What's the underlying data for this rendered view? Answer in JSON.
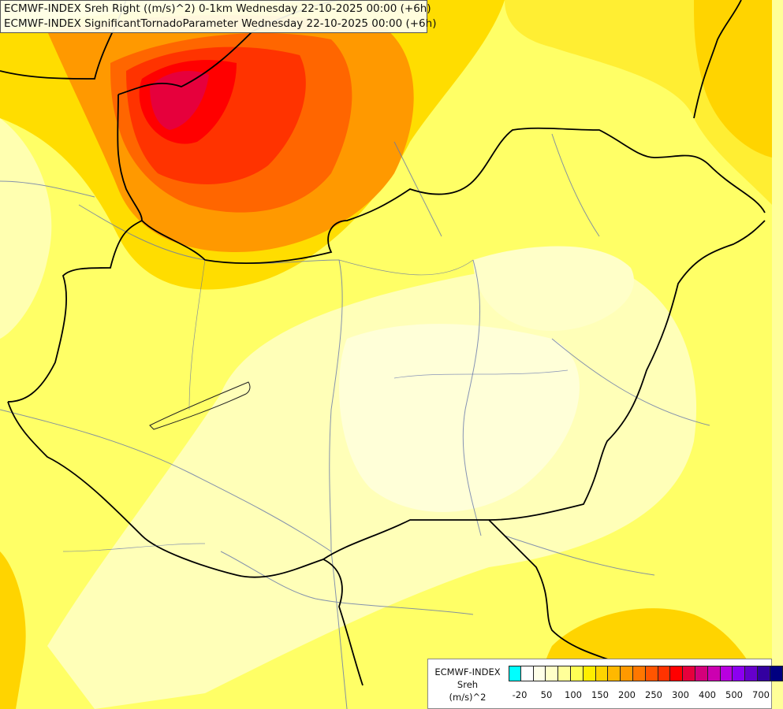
{
  "title": {
    "line1": "ECMWF-INDEX Sreh Right ((m/s)^2) 0-1km Wednesday 22-10-2025 00:00 (+6h)",
    "line2": "ECMWF-INDEX SignificantTornadoParameter Wednesday 22-10-2025 00:00 (+6h)"
  },
  "legend": {
    "source": "ECMWF-INDEX",
    "variable": "Sreh",
    "unit": "(m/s)^2",
    "colors": [
      "#00ffff",
      "#ffffff",
      "#ffffe8",
      "#ffffc8",
      "#ffff99",
      "#ffff55",
      "#ffee00",
      "#ffd400",
      "#ffb800",
      "#ff9900",
      "#ff7700",
      "#ff5500",
      "#ff3300",
      "#ff0000",
      "#e6003c",
      "#d4007a",
      "#cc00b0",
      "#b800e0",
      "#8c00f0",
      "#6600cc",
      "#3300a0",
      "#000080"
    ],
    "tick_labels": [
      "-20",
      "50",
      "100",
      "150",
      "200",
      "250",
      "300",
      "400",
      "500",
      "700"
    ]
  }
}
